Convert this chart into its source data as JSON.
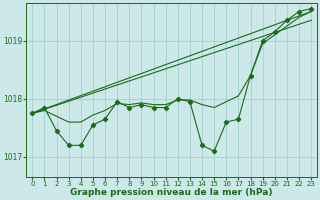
{
  "background_color": "#cce8e8",
  "grid_color": "#99cccc",
  "line_color": "#1a6b1a",
  "xlabel": "Graphe pression niveau de la mer (hPa)",
  "xlabel_fontsize": 6.5,
  "yticks": [
    1017,
    1018,
    1019
  ],
  "xtick_labels": [
    "0",
    "1",
    "2",
    "3",
    "4",
    "5",
    "6",
    "7",
    "8",
    "9",
    "10",
    "11",
    "12",
    "13",
    "14",
    "15",
    "16",
    "17",
    "18",
    "19",
    "20",
    "21",
    "22",
    "23"
  ],
  "xlim": [
    -0.5,
    23.5
  ],
  "ylim": [
    1016.65,
    1019.65
  ],
  "zigzag_x": [
    0,
    1,
    2,
    3,
    4,
    5,
    6,
    7,
    8,
    9,
    10,
    11,
    12,
    13,
    14,
    15,
    16,
    17,
    18,
    19,
    20,
    21,
    22,
    23
  ],
  "zigzag_y": [
    1017.75,
    1017.85,
    1017.45,
    1017.2,
    1017.2,
    1017.55,
    1017.65,
    1017.95,
    1017.85,
    1017.9,
    1017.85,
    1017.85,
    1018.0,
    1017.95,
    1017.2,
    1017.1,
    1017.6,
    1017.65,
    1018.4,
    1019.0,
    1019.15,
    1019.35,
    1019.5,
    1019.55
  ],
  "trend_line1_x": [
    0,
    23
  ],
  "trend_line1_y": [
    1017.75,
    1019.5
  ],
  "trend_line2_x": [
    0,
    23
  ],
  "trend_line2_y": [
    1017.75,
    1019.35
  ],
  "smooth_line_x": [
    0,
    1,
    2,
    3,
    4,
    5,
    6,
    7,
    8,
    9,
    10,
    11,
    12,
    13,
    14,
    15,
    16,
    17,
    18,
    19,
    20,
    21,
    22,
    23
  ],
  "smooth_line_y": [
    1017.75,
    1017.8,
    1017.7,
    1017.6,
    1017.6,
    1017.72,
    1017.8,
    1017.92,
    1017.9,
    1017.93,
    1017.9,
    1017.9,
    1017.98,
    1017.98,
    1017.9,
    1017.85,
    1017.95,
    1018.05,
    1018.4,
    1018.95,
    1019.1,
    1019.25,
    1019.4,
    1019.5
  ]
}
